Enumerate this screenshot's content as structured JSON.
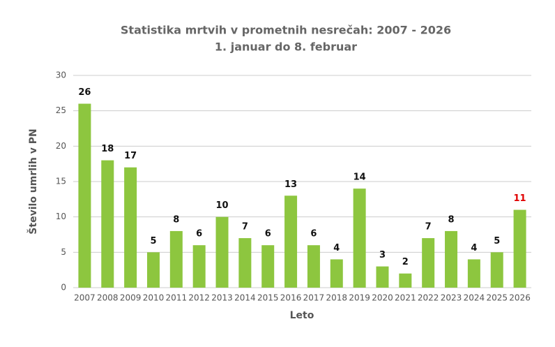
{
  "chart_data": {
    "type": "bar",
    "title": "Statistika mrtvih v prometnih nesrečah: 2007 - 2026",
    "subtitle": "1. januar do 8. februar",
    "x_label": "Leto",
    "y_label": "Število umrlih v PN",
    "categories": [
      "2007",
      "2008",
      "2009",
      "2010",
      "2011",
      "2012",
      "2013",
      "2014",
      "2015",
      "2016",
      "2017",
      "2018",
      "2019",
      "2020",
      "2021",
      "2022",
      "2023",
      "2024",
      "2025",
      "2026"
    ],
    "values": [
      26,
      18,
      17,
      5,
      8,
      6,
      10,
      7,
      6,
      13,
      6,
      4,
      14,
      3,
      2,
      7,
      8,
      4,
      5,
      11
    ],
    "value_label_colors": [
      "#111",
      "#111",
      "#111",
      "#111",
      "#111",
      "#111",
      "#111",
      "#111",
      "#111",
      "#111",
      "#111",
      "#111",
      "#111",
      "#111",
      "#111",
      "#111",
      "#111",
      "#111",
      "#111",
      "#e00000"
    ],
    "color": "#8dc63f",
    "ylim": [
      0,
      30
    ],
    "yticks": [
      0,
      5,
      10,
      15,
      20,
      25,
      30
    ],
    "grid": true
  }
}
